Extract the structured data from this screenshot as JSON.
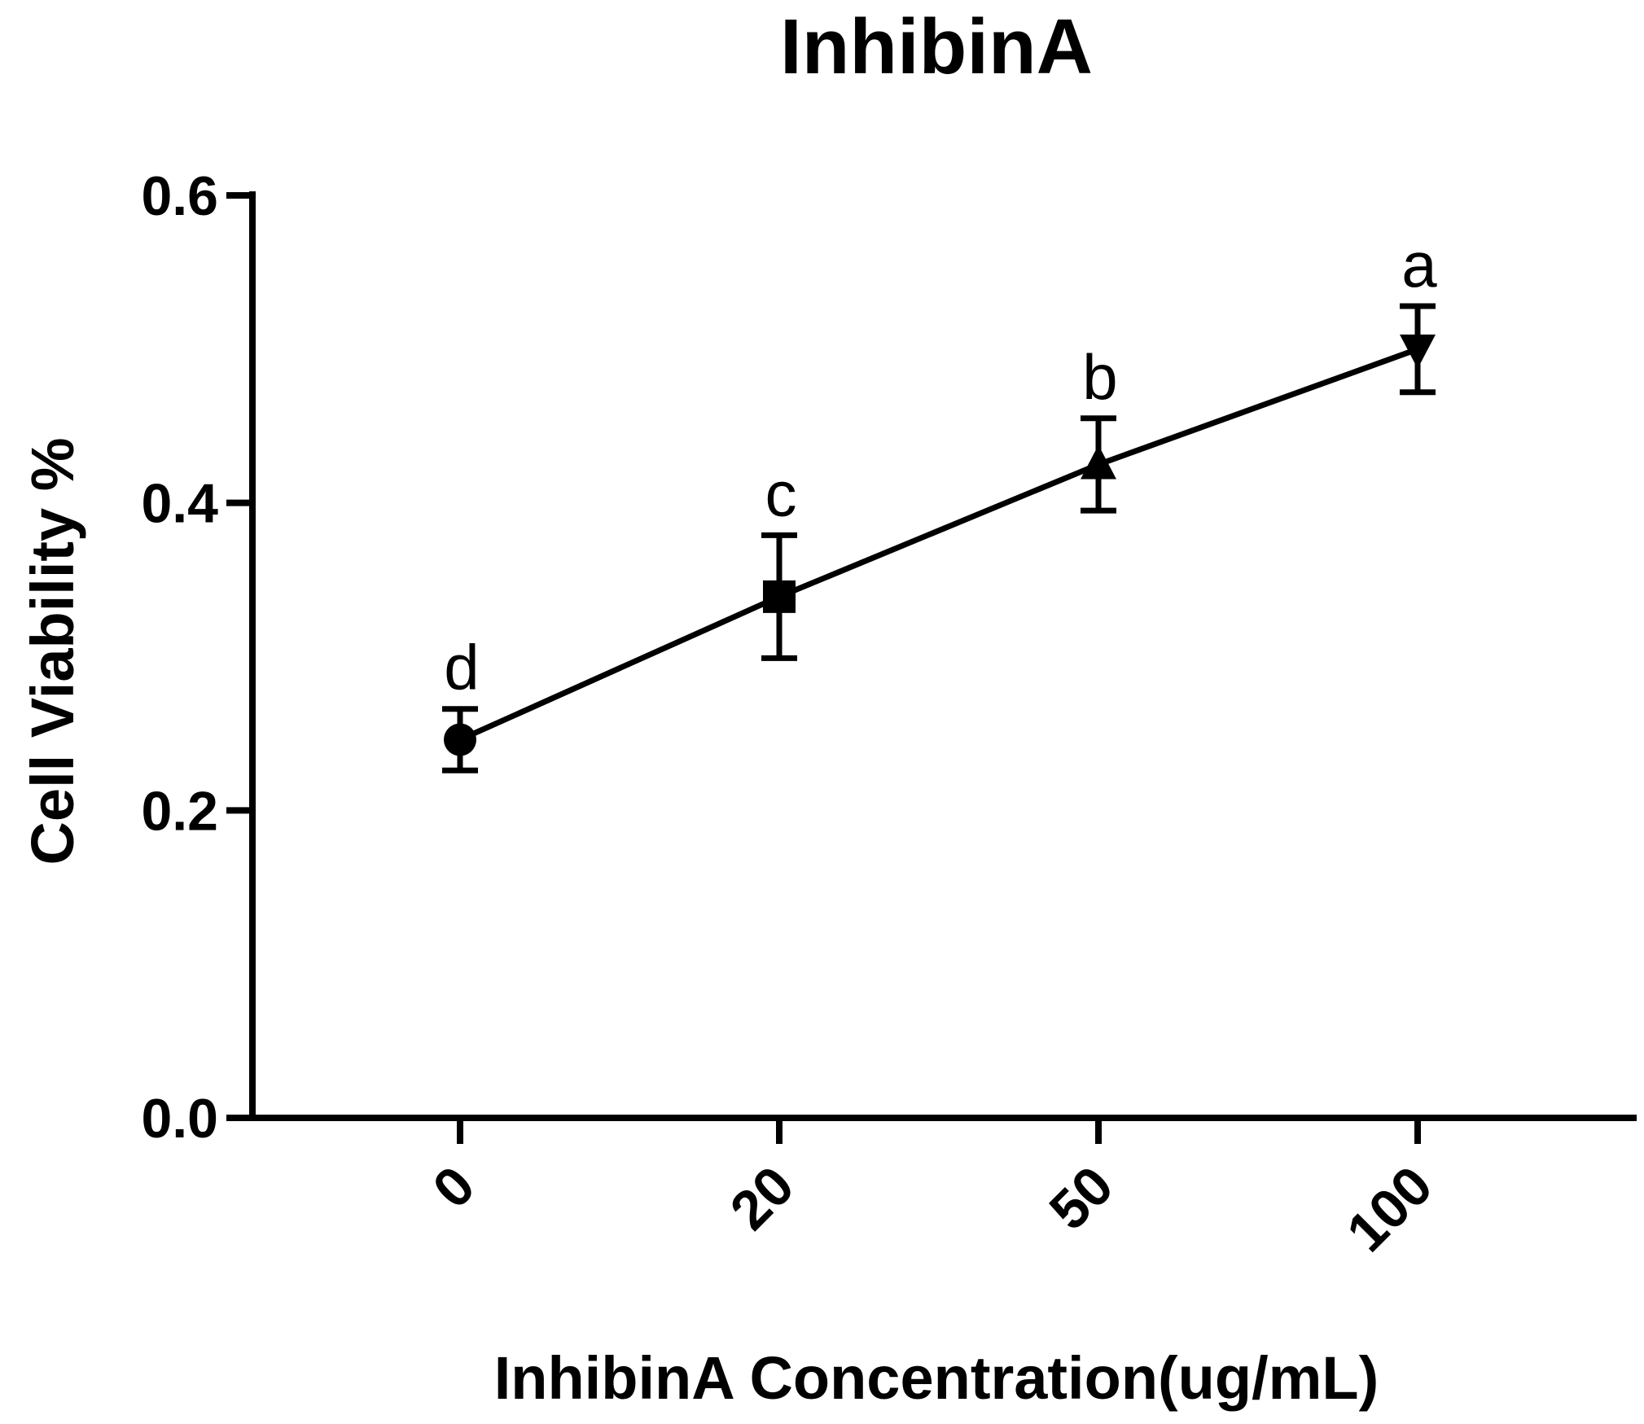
{
  "chart_data": {
    "type": "line",
    "title": "InhibinA",
    "xlabel": "InhibinA Concentration(ug/mL)",
    "ylabel": "Cell Viability %",
    "categories": [
      "0",
      "20",
      "50",
      "100"
    ],
    "yticks": [
      "0.0",
      "0.2",
      "0.4",
      "0.6"
    ],
    "ylim": [
      0,
      0.6
    ],
    "grid": false,
    "series": [
      {
        "values": [
          0.246,
          0.339,
          0.425,
          0.5
        ],
        "errors": [
          0.02,
          0.04,
          0.03,
          0.028
        ],
        "markers": [
          "circle",
          "square",
          "triangle-up",
          "triangle-down"
        ],
        "annotations": [
          "d",
          "c",
          "b",
          "a"
        ],
        "color": "#000000"
      }
    ]
  }
}
